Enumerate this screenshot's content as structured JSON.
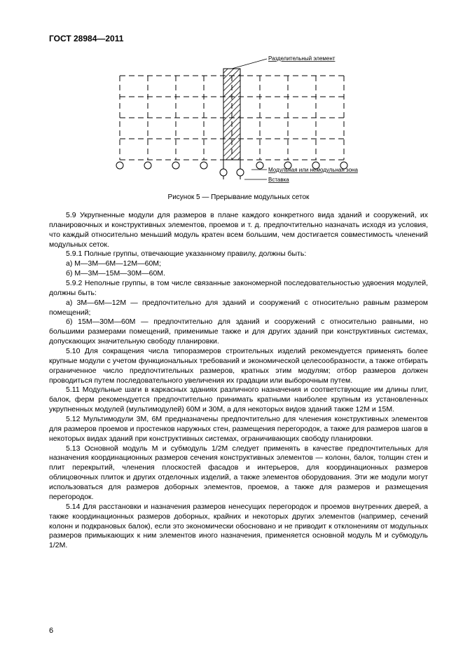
{
  "header": "ГОСТ 28984—2011",
  "figure": {
    "label_top": "Разделительный элемент",
    "label_mid": "Модульная или немодульная зона",
    "label_bottom": "Вставка",
    "caption": "Рисунок 5 — Прерывание модульных сеток",
    "stroke": "#000000",
    "fill": "#ffffff"
  },
  "paragraphs": [
    "5.9  Укрупненные модули для размеров в плане каждого конкретного вида зданий и сооружений, их планировочных и конструктивных элементов, проемов и т. д. предпочтительно назначать исходя из условия, что каждый относительно меньший модуль кратен всем большим, чем достигается совместимость членений модульных сеток.",
    "5.9.1  Полные группы, отвечающие указанному правилу, должны быть:",
    "а)  М—3М—6М—12М—60М;",
    "б)  М—3М—15М—30М—60М.",
    "5.9.2  Неполные группы, в том числе связанные закономерной последовательностью удвоения модулей, должны быть:",
    "а)  3М—6М—12М — предпочтительно для зданий и сооружений с относительно равным размером помещений;",
    "б)  15М—30М—60М — предпочтительно для зданий и сооружений с относительно равными, но большими размерами помещений, применимые также и для других зданий при конструктивных системах, допускающих значительную свободу планировки.",
    "5.10  Для сокращения числа типоразмеров строительных изделий рекомендуется применять более крупные модули с учетом функциональных требований и экономической целесообразности, а также отбирать ограниченное число предпочтительных размеров, кратных этим модулям; отбор размеров должен проводиться путем последовательного увеличения их градации или выборочным путем.",
    "5.11  Модульные шаги в каркасных зданиях различного назначения и соответствующие им длины плит, балок, ферм рекомендуется предпочтительно принимать кратными наиболее крупным из установленных укрупненных модулей (мультимодулей) 60М и 30М, а для некоторых видов зданий также 12М и 15М.",
    "5.12  Мультимодули 3М, 6М предназначены предпочтительно для членения конструктивных элементов для размеров проемов и простенков наружных стен, размещения перегородок, а также для размеров шагов в некоторых видах зданий при конструктивных системах, ограничивающих свободу планировки.",
    "5.13  Основной модуль М и субмодуль 1/2М следует применять в качестве предпочтительных для назначения координационных размеров сечения конструктивных элементов — колонн, балок, толщин стен и плит перекрытий, членения плоскостей фасадов и интерьеров, для координационных размеров облицовочных плиток и других отделочных изделий, а также элементов оборудования. Эти же модули могут использоваться для размеров доборных элементов, проемов, а также для размеров и размещения перегородок.",
    "5.14  Для расстановки и назначения размеров ненесущих перегородок и проемов внутренних дверей, а также координационных размеров доборных, крайних и некоторых других элементов (например, сечений колонн и подкрановых балок), если это экономически обосновано и не приводит к отклонениям от модульных размеров примыкающих к ним элементов иного назначения, применяется основной модуль М и субмодуль 1/2М."
  ],
  "page_number": "6"
}
